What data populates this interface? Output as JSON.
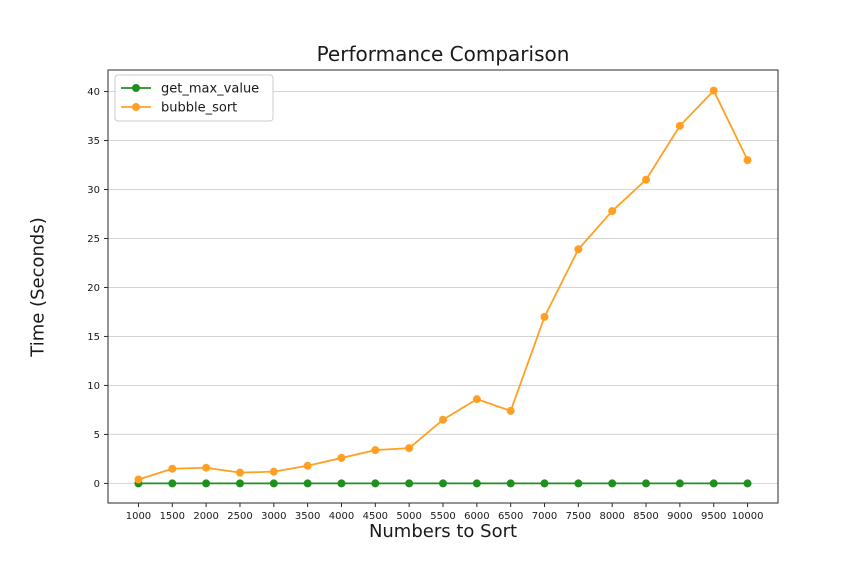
{
  "chart_data": {
    "type": "line",
    "title": "Performance Comparison",
    "xlabel": "Numbers to Sort",
    "ylabel": "Time (Seconds)",
    "x": [
      1000,
      1500,
      2000,
      2500,
      3000,
      3500,
      4000,
      4500,
      5000,
      5500,
      6000,
      6500,
      7000,
      7500,
      8000,
      8500,
      9000,
      9500,
      10000
    ],
    "series": [
      {
        "name": "get_max_value",
        "color": "#1f8f1f",
        "values": [
          0,
          0,
          0,
          0,
          0,
          0,
          0,
          0,
          0,
          0,
          0,
          0,
          0,
          0,
          0,
          0,
          0,
          0,
          0
        ]
      },
      {
        "name": "bubble_sort",
        "color": "#ffa024",
        "values": [
          0.4,
          1.5,
          1.6,
          1.1,
          1.2,
          1.8,
          2.6,
          3.4,
          3.6,
          6.5,
          8.6,
          7.4,
          17,
          23.9,
          27.8,
          31,
          36.5,
          40.1,
          33
        ]
      }
    ],
    "xticks": [
      1000,
      1500,
      2000,
      2500,
      3000,
      3500,
      4000,
      4500,
      5000,
      5500,
      6000,
      6500,
      7000,
      7500,
      8000,
      8500,
      9000,
      9500,
      10000
    ],
    "yticks": [
      0,
      5,
      10,
      15,
      20,
      25,
      30,
      35,
      40
    ],
    "xlim": [
      550,
      10450
    ],
    "ylim": [
      -2,
      42.2
    ],
    "grid": "horizontal",
    "grid_color": "#d5d5d5",
    "spine_color": "#2a2a2a",
    "tick_color": "#2a2a2a",
    "legend_position": "upper-left",
    "legend_border_color": "#cccccc",
    "legend_background": "#ffffff"
  }
}
